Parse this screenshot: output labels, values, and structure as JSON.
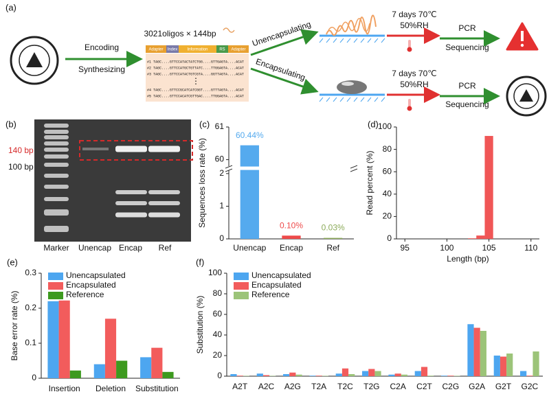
{
  "panel_a": {
    "label": "(a)",
    "encoding": "Encoding",
    "synthesizing": "Synthesizing",
    "oligo_title": "3021oligos × 144bp",
    "segments": [
      "Adapter",
      "Index",
      "Information",
      "RS",
      "Adapter"
    ],
    "sequences": [
      "#1 TAGC....GTTCCATACTATCTGG....GTTGAGTA....ACAT",
      "#2 TAGC....GTTCCATGCTGTTATC....TTGGAGTA....ACAT",
      "#3 TAGC....GTTCCATACTGTCGTA....GGTTAGTA....ACAT",
      "#4 TAGC....GTTCCGCATCATCGGT....GTTTAGTA....ACAT",
      "#5 TAGC....GTTCCACATCGTTGAC....TTGGAGTA....ACAT"
    ],
    "ellipsis": "⋮",
    "branches": [
      {
        "treatment": "Unencapsulating",
        "condition": "7 days 70℃",
        "humidity": "50%RH",
        "step1": "PCR",
        "step2": "Sequencing"
      },
      {
        "treatment": "Encapsulating",
        "condition": "7 days 70℃",
        "humidity": "50%RH",
        "step1": "PCR",
        "step2": "Sequencing"
      }
    ]
  },
  "panel_b": {
    "label": "(b)",
    "size_labels": [
      "140 bp",
      "100 bp"
    ],
    "lanes": [
      "Marker",
      "Unencap",
      "Encap",
      "Ref"
    ]
  },
  "chart_data": [
    {
      "type": "broken_bar",
      "panel_label": "(c)",
      "ylabel": "Sequences loss rate (%)",
      "categories": [
        "Unencap",
        "Encap",
        "Ref"
      ],
      "values": [
        60.44,
        0.1,
        0.03
      ],
      "value_labels": [
        "60.44%",
        "0.10%",
        "0.03%"
      ],
      "colors": [
        "#55aaee",
        "#ee4a4a",
        "#8cab5a"
      ],
      "ylim": [
        0,
        61
      ],
      "yticks": [
        0,
        1,
        2,
        60,
        61
      ],
      "axis_break": [
        2.1,
        59.8
      ]
    },
    {
      "type": "histogram",
      "panel_label": "(d)",
      "xlabel": "Length (bp)",
      "ylabel": "Read percent (%)",
      "bins": [
        102.5,
        103.5,
        104.5,
        105.5
      ],
      "values": [
        0.5,
        3,
        92
      ],
      "color": "#f05656",
      "xlim": [
        94,
        111
      ],
      "xticks": [
        95,
        100,
        105,
        110
      ],
      "ylim": [
        0,
        100
      ],
      "yticks": [
        0,
        20,
        40,
        60,
        80,
        100
      ]
    },
    {
      "type": "grouped_bar",
      "panel_label": "(e)",
      "ylabel": "Base error rate (%)",
      "categories": [
        "Insertion",
        "Deletion",
        "Substitution"
      ],
      "series": [
        {
          "name": "Unencapsulated",
          "color": "#4da6f0",
          "values": [
            0.22,
            0.04,
            0.06
          ]
        },
        {
          "name": "Encapsulated",
          "color": "#f25c5c",
          "values": [
            0.222,
            0.17,
            0.087
          ]
        },
        {
          "name": "Reference",
          "color": "#3d9a1f",
          "values": [
            0.022,
            0.05,
            0.018
          ]
        }
      ],
      "ylim": [
        0,
        0.3
      ],
      "yticks": [
        0,
        0.1,
        0.2,
        0.3
      ],
      "legend": "upper left"
    },
    {
      "type": "grouped_bar",
      "panel_label": "(f)",
      "ylabel": "Substitution (%)",
      "categories": [
        "A2T",
        "A2C",
        "A2G",
        "T2A",
        "T2C",
        "T2G",
        "C2A",
        "C2T",
        "C2G",
        "G2A",
        "G2T",
        "G2C"
      ],
      "series": [
        {
          "name": "Unencapsulated",
          "color": "#4da6f0",
          "values": [
            2,
            2.5,
            2,
            0.5,
            2.5,
            5,
            1.5,
            5,
            0.5,
            50.5,
            20,
            5
          ]
        },
        {
          "name": "Encapsulated",
          "color": "#f25c5c",
          "values": [
            0.5,
            1,
            3.5,
            0.5,
            7.5,
            7,
            2.5,
            9,
            0.5,
            47,
            19,
            0.5
          ]
        },
        {
          "name": "Reference",
          "color": "#9cc479",
          "values": [
            0.3,
            0.3,
            1.5,
            0.3,
            2,
            5,
            1.5,
            0.5,
            0.3,
            44,
            22,
            24
          ]
        }
      ],
      "ylim": [
        0,
        100
      ],
      "yticks": [
        0,
        20,
        40,
        60,
        80,
        100
      ],
      "legend": "upper left"
    }
  ]
}
